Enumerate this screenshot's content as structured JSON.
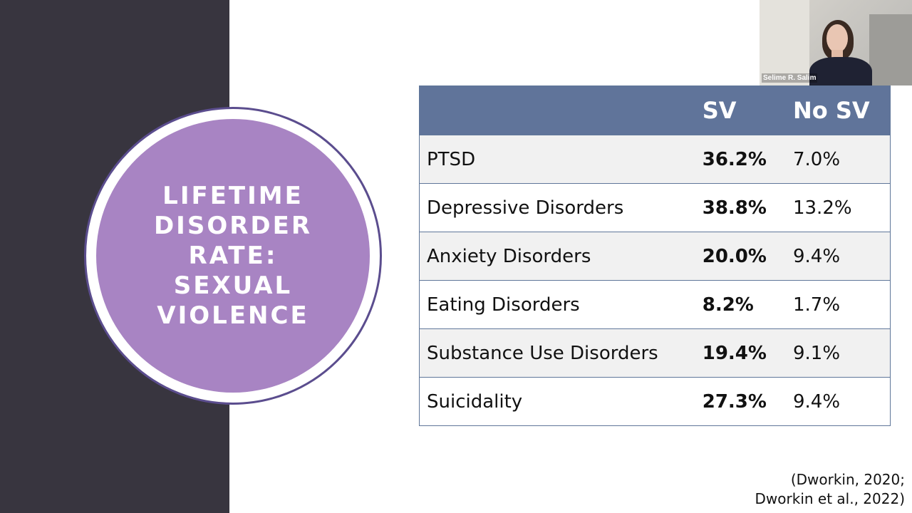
{
  "slide": {
    "title_lines": [
      "LIFETIME",
      "DISORDER",
      "RATE:",
      "SEXUAL",
      "VIOLENCE"
    ],
    "table": {
      "headers": [
        "",
        "SV",
        "No SV"
      ],
      "rows": [
        {
          "label": "PTSD",
          "sv": "36.2%",
          "no_sv": "7.0%"
        },
        {
          "label": "Depressive Disorders",
          "sv": "38.8%",
          "no_sv": "13.2%"
        },
        {
          "label": "Anxiety Disorders",
          "sv": "20.0%",
          "no_sv": "9.4%"
        },
        {
          "label": "Eating Disorders",
          "sv": "8.2%",
          "no_sv": "1.7%"
        },
        {
          "label": "Substance Use Disorders",
          "sv": "19.4%",
          "no_sv": "9.1%"
        },
        {
          "label": "Suicidality",
          "sv": "27.3%",
          "no_sv": "9.4%"
        }
      ]
    },
    "citation_lines": [
      "(Dworkin, 2020;",
      "Dworkin et al., 2022)"
    ],
    "colors": {
      "side_panel": "#38353f",
      "circle_fill": "#a884c3",
      "circle_ring": "#5b4d8e",
      "table_header": "#60749a",
      "row_shade": "#f1f1f1"
    }
  },
  "video": {
    "participant_name": "Selime R. Salim"
  }
}
